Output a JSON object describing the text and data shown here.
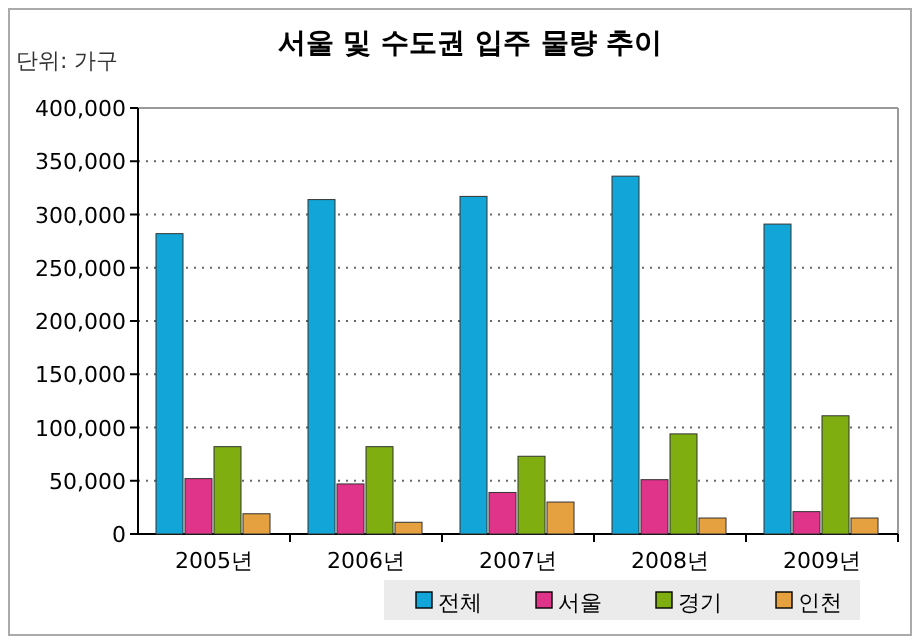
{
  "chart_data": {
    "type": "bar",
    "title": "서울 및 수도권 입주 물량 추이",
    "annotations": [
      "단위: 가구"
    ],
    "categories": [
      "2005년",
      "2006년",
      "2007년",
      "2008년",
      "2009년"
    ],
    "series": [
      {
        "name": "전체",
        "color": "#12a6d8",
        "values": [
          282000,
          314000,
          317000,
          336000,
          291000
        ]
      },
      {
        "name": "서울",
        "color": "#e0338a",
        "values": [
          52000,
          47000,
          39000,
          51000,
          21000
        ]
      },
      {
        "name": "경기",
        "color": "#7fae10",
        "values": [
          82000,
          82000,
          73000,
          94000,
          111000
        ]
      },
      {
        "name": "인천",
        "color": "#e5a040",
        "values": [
          19000,
          11000,
          30000,
          15000,
          15000
        ]
      }
    ],
    "ylim": [
      0,
      400000
    ],
    "yticks": [
      {
        "value": 0,
        "label": "0"
      },
      {
        "value": 50000,
        "label": "50,000"
      },
      {
        "value": 100000,
        "label": "100,000"
      },
      {
        "value": 150000,
        "label": "150,000"
      },
      {
        "value": 200000,
        "label": "200,000"
      },
      {
        "value": 250000,
        "label": "250,000"
      },
      {
        "value": 300000,
        "label": "300,000"
      },
      {
        "value": 350000,
        "label": "350,000"
      },
      {
        "value": 400000,
        "label": "400,000"
      }
    ],
    "grid": "y",
    "legend": "bottom"
  }
}
